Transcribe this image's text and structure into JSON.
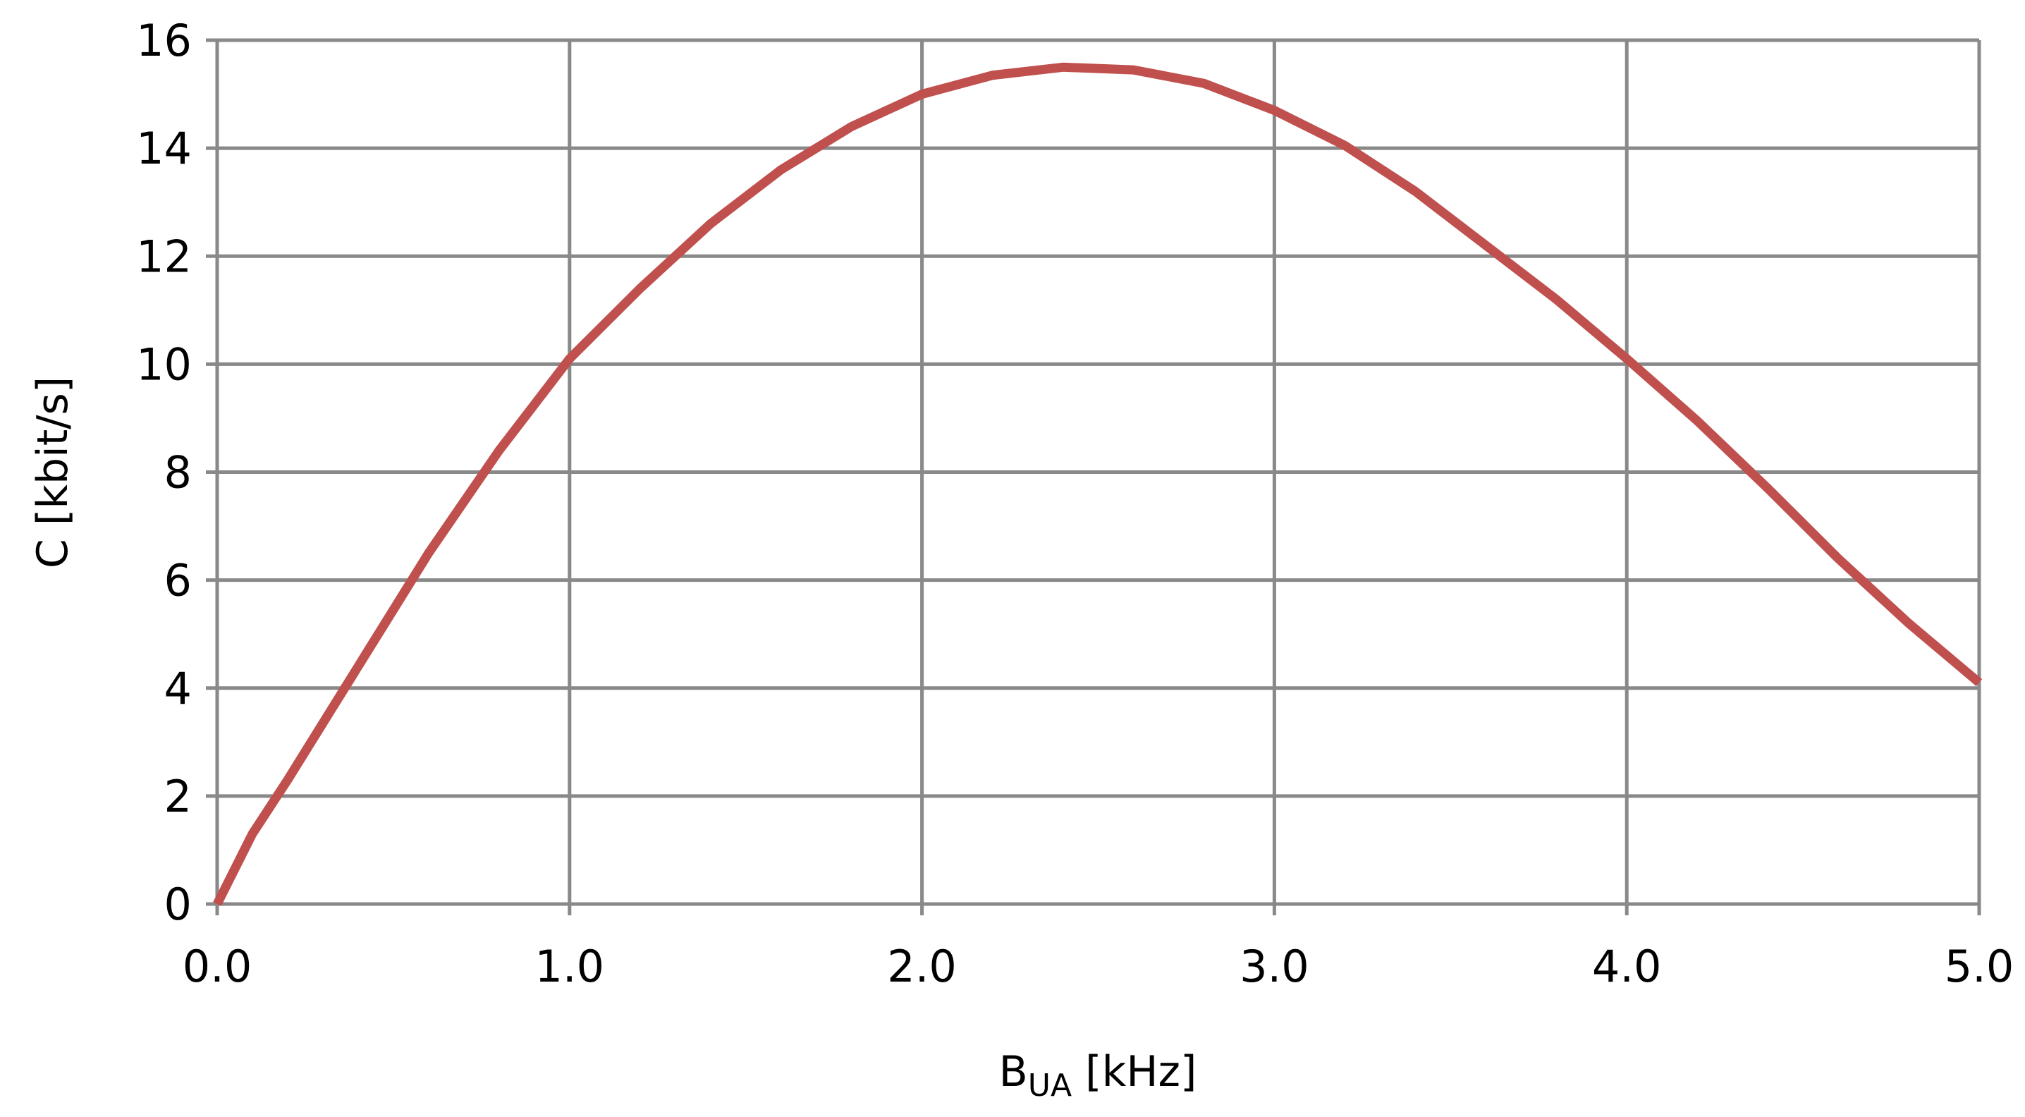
{
  "chart_data": {
    "type": "line",
    "x_label": [
      "B",
      "UA",
      " [kHz]"
    ],
    "y_label": "C [kbit/s]",
    "x": [
      0,
      0.1,
      0.2,
      0.4,
      0.6,
      0.8,
      1.0,
      1.2,
      1.4,
      1.6,
      1.8,
      2.0,
      2.2,
      2.4,
      2.6,
      2.8,
      3.0,
      3.2,
      3.4,
      3.6,
      3.8,
      4.0,
      4.2,
      4.4,
      4.6,
      4.8,
      5.0
    ],
    "series": [
      {
        "color": "#c0504d",
        "values": [
          0,
          1.3,
          2.3,
          4.4,
          6.5,
          8.4,
          10.1,
          11.4,
          12.6,
          13.6,
          14.4,
          15.0,
          15.35,
          15.5,
          15.45,
          15.2,
          14.7,
          14.05,
          13.2,
          12.2,
          11.2,
          10.1,
          8.95,
          7.7,
          6.4,
          5.2,
          4.1
        ]
      }
    ],
    "xlim": [
      0,
      5
    ],
    "ylim": [
      0,
      16
    ],
    "xticks": [
      {
        "value": 0,
        "label": "0.0"
      },
      {
        "value": 1,
        "label": "1.0"
      },
      {
        "value": 2,
        "label": "2.0"
      },
      {
        "value": 3,
        "label": "3.0"
      },
      {
        "value": 4,
        "label": "4.0"
      },
      {
        "value": 5,
        "label": "5.0"
      }
    ],
    "yticks": [
      0,
      2,
      4,
      6,
      8,
      10,
      12,
      14,
      16
    ],
    "grid": true,
    "grid_color": "#898989"
  }
}
